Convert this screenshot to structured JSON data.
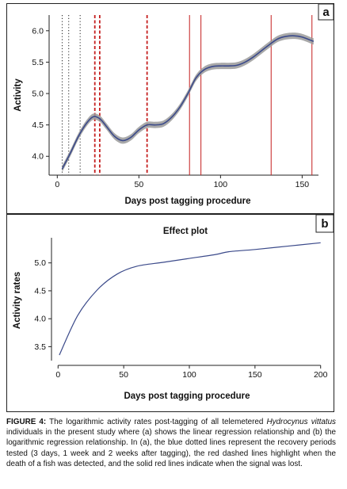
{
  "panel_a": {
    "letter": "a",
    "ylabel": "Activity",
    "xlabel": "Days post tagging procedure"
  },
  "panel_b": {
    "letter": "b",
    "title": "Effect plot",
    "ylabel": "Activity rates",
    "xlabel": "Days post tagging procedure"
  },
  "caption": {
    "label": "FIGURE 4:",
    "text_before_species": " The logarithmic activity rates post-tagging of all telemetered",
    "species": "Hydrocynus vittatus",
    "text_after_species": " individuals in the present study where (a) shows the linear regression relationship and (b) the logarithmic regression relationship. In (a), the blue dotted lines represent the recovery periods tested (3 days, 1 week and 2 weeks after tagging), the red dashed lines highlight when the death of a fish was detected, and the solid red lines indicate when the signal was lost."
  },
  "chart_data": [
    {
      "type": "line",
      "title": "",
      "xlabel": "Days post tagging procedure",
      "ylabel": "Activity",
      "xlim": [
        -5,
        160
      ],
      "ylim": [
        3.7,
        6.25
      ],
      "xticks": [
        0,
        50,
        100,
        150
      ],
      "yticks": [
        4.0,
        4.5,
        5.0,
        5.5,
        6.0
      ],
      "x": [
        3,
        8,
        13,
        18,
        22,
        26,
        30,
        35,
        40,
        45,
        50,
        55,
        60,
        65,
        70,
        75,
        80,
        85,
        90,
        95,
        100,
        105,
        110,
        115,
        120,
        125,
        130,
        135,
        140,
        145,
        150,
        157
      ],
      "y": [
        3.8,
        4.05,
        4.32,
        4.53,
        4.63,
        4.6,
        4.48,
        4.32,
        4.25,
        4.3,
        4.42,
        4.5,
        4.5,
        4.52,
        4.62,
        4.78,
        5.0,
        5.25,
        5.38,
        5.43,
        5.44,
        5.44,
        5.45,
        5.5,
        5.58,
        5.68,
        5.78,
        5.87,
        5.91,
        5.92,
        5.9,
        5.83
      ],
      "band": 0.05,
      "line_color": "#3b4a8a",
      "band_color": "#9a9a9a",
      "recovery_lines": [
        3,
        7,
        14
      ],
      "recovery_color": "#222222",
      "death_lines": [
        23,
        26,
        55
      ],
      "death_color": "#c41e1e",
      "signal_lost_lines": [
        81,
        88,
        131,
        156
      ],
      "signal_lost_color": "#c41e1e",
      "grid": false
    },
    {
      "type": "line",
      "title": "Effect plot",
      "xlabel": "Days post tagging procedure",
      "ylabel": "Activity rates",
      "xlim": [
        -5,
        205
      ],
      "ylim": [
        3.25,
        5.45
      ],
      "xticks": [
        0,
        50,
        100,
        150,
        200
      ],
      "yticks": [
        3.5,
        4.0,
        4.5,
        5.0
      ],
      "x": [
        1,
        15,
        30,
        45,
        60,
        80,
        100,
        120,
        130,
        150,
        175,
        200
      ],
      "y": [
        3.35,
        4.06,
        4.52,
        4.8,
        4.94,
        5.01,
        5.08,
        5.15,
        5.2,
        5.24,
        5.3,
        5.36
      ],
      "line_color": "#3b4a8a",
      "grid": false
    }
  ]
}
